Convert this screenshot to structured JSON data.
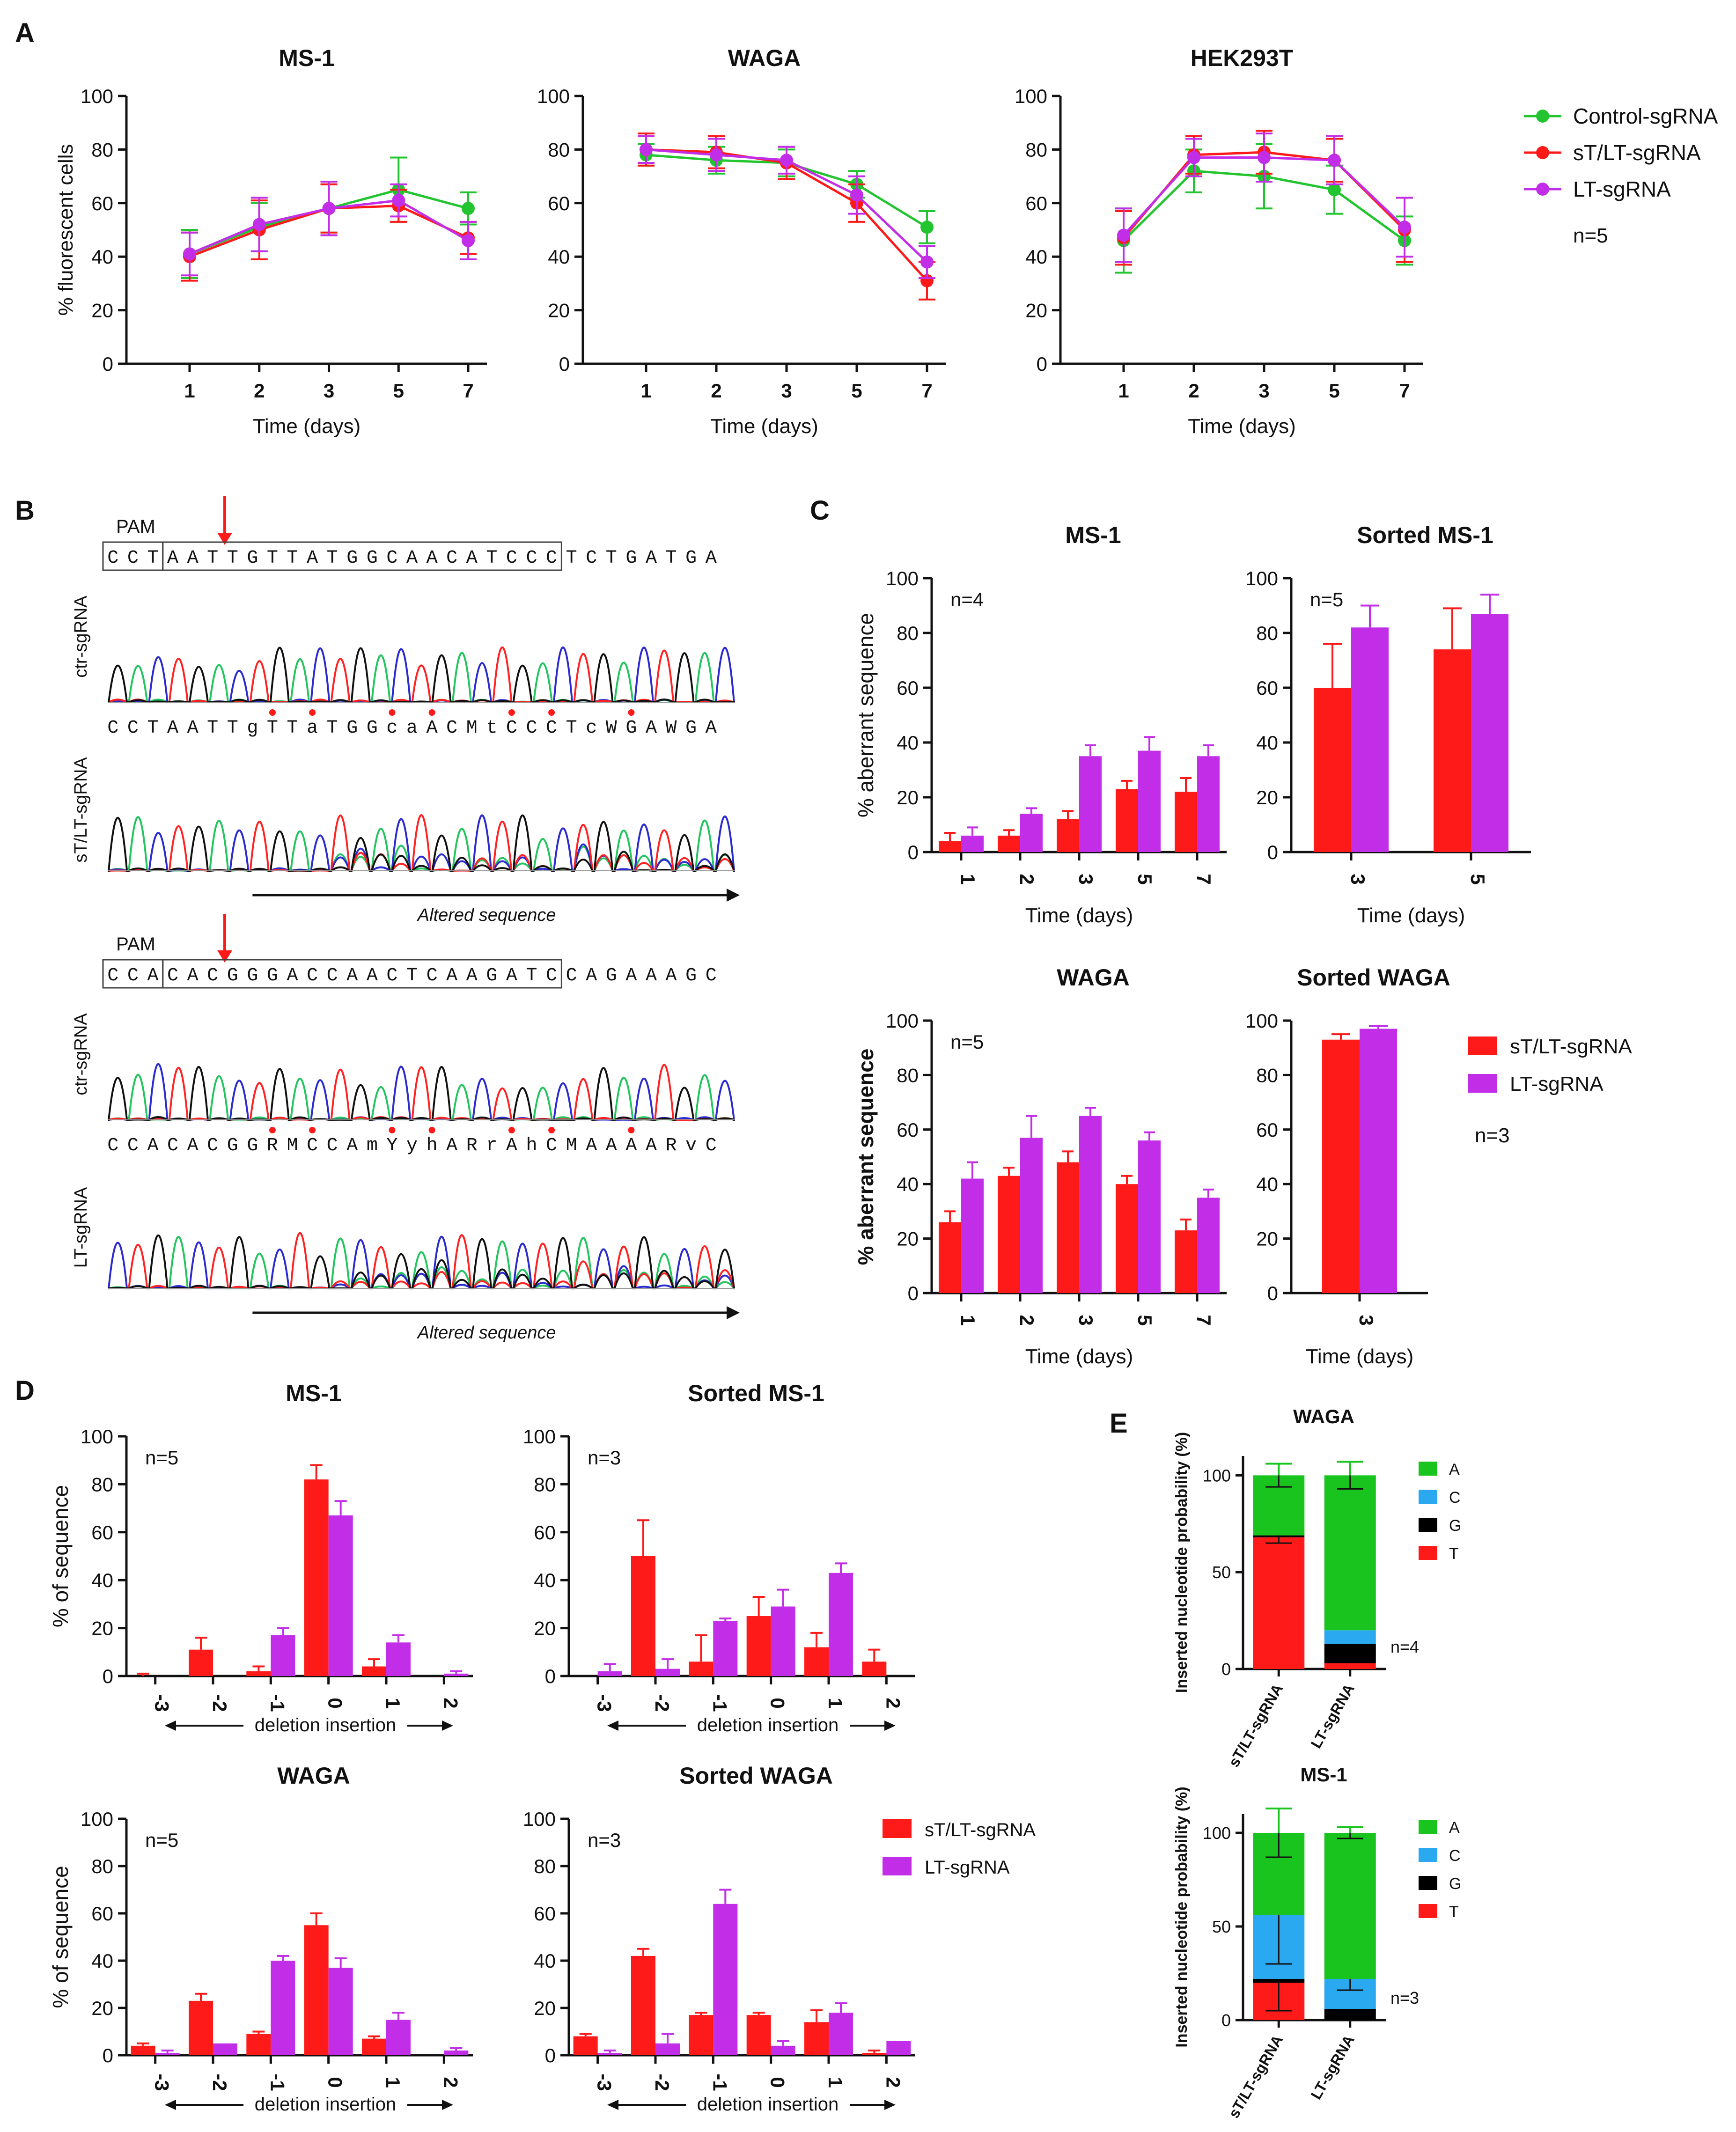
{
  "colors": {
    "control": "#22c52f",
    "red": "#ff1a1a",
    "magenta": "#c22ee8",
    "A": "#19c41f",
    "C": "#2aa8f0",
    "G": "#000000",
    "T": "#ff1a1a",
    "trace_green": "#22c55e",
    "trace_blue": "#2a2ad0",
    "trace_red": "#ff2222",
    "trace_black": "#111111",
    "green_letter": "#22b22b",
    "blue_letter": "#2c2cc8"
  },
  "panel_letters": {
    "A": "A",
    "B": "B",
    "C": "C",
    "D": "D",
    "E": "E"
  },
  "panel_a": {
    "legend": [
      "Control-sgRNA",
      "sT/LT-sgRNA",
      "LT-sgRNA"
    ],
    "n_label": "n=5",
    "ylabel": "% fluorescent cells",
    "xlabel": "Time (days)"
  },
  "panel_b": {
    "top": {
      "pam": "PAM",
      "ref": "CCTAATTGTTATGGCAACATCCCTCTGATGA",
      "ctr_label": "ctr-sgRNA",
      "mut_label": "sT/LT-sgRNA",
      "called": "CCTAATTgTTaTGGcaACMtCCCTcWGAWGA",
      "altered": "Altered sequence"
    },
    "bottom": {
      "pam": "PAM",
      "ref": "CCACACGGGACCAACTCAAGATCCAGAAAGC",
      "ctr_label": "ctr-sgRNA",
      "mut_label": "LT-sgRNA",
      "called": "CCACACGGRMCCAmYyhARrAhCMAAAARvC",
      "altered": "Altered sequence"
    }
  },
  "panel_c": {
    "ylabel": "% aberrant sequence",
    "xlabel": "Time (days)",
    "legend": [
      "sT/LT-sgRNA",
      "LT-sgRNA"
    ],
    "n_extra": "n=3"
  },
  "panel_d": {
    "ylabel": "% of sequence",
    "axis_note": "deletion   insertion",
    "legend": [
      "sT/LT-sgRNA",
      "LT-sgRNA"
    ]
  },
  "panel_e": {
    "ylabel": "Inserted nucleotide probability (%)",
    "legend": [
      "A",
      "C",
      "G",
      "T"
    ]
  },
  "chart_data": [
    {
      "id": "A-MS1",
      "type": "line",
      "title": "MS-1",
      "xlabel": "Time (days)",
      "ylabel": "% fluorescent cells",
      "ylim": [
        0,
        100
      ],
      "categories": [
        "1",
        "2",
        "3",
        "5",
        "7"
      ],
      "series": [
        {
          "name": "Control-sgRNA",
          "values": [
            41,
            51,
            58,
            65,
            58
          ],
          "errors": [
            9,
            9,
            9,
            12,
            6
          ]
        },
        {
          "name": "sT/LT-sgRNA",
          "values": [
            40,
            50,
            58,
            59,
            47
          ],
          "errors": [
            9,
            11,
            9,
            6,
            6
          ]
        },
        {
          "name": "LT-sgRNA",
          "values": [
            41,
            52,
            58,
            61,
            46
          ],
          "errors": [
            8,
            10,
            10,
            6,
            7
          ]
        }
      ]
    },
    {
      "id": "A-WAGA",
      "type": "line",
      "title": "WAGA",
      "xlabel": "Time (days)",
      "ylabel": "",
      "ylim": [
        0,
        100
      ],
      "categories": [
        "1",
        "2",
        "3",
        "5",
        "7"
      ],
      "series": [
        {
          "name": "Control-sgRNA",
          "values": [
            78,
            76,
            75,
            67,
            51
          ],
          "errors": [
            4,
            5,
            5,
            5,
            6
          ]
        },
        {
          "name": "sT/LT-sgRNA",
          "values": [
            80,
            79,
            75,
            60,
            31
          ],
          "errors": [
            6,
            6,
            6,
            7,
            7
          ]
        },
        {
          "name": "LT-sgRNA",
          "values": [
            80,
            78,
            76,
            63,
            38
          ],
          "errors": [
            5,
            6,
            5,
            7,
            6
          ]
        }
      ]
    },
    {
      "id": "A-HEK",
      "type": "line",
      "title": "HEK293T",
      "xlabel": "Time (days)",
      "ylabel": "",
      "ylim": [
        0,
        100
      ],
      "categories": [
        "1",
        "2",
        "3",
        "5",
        "7"
      ],
      "series": [
        {
          "name": "Control-sgRNA",
          "values": [
            46,
            72,
            70,
            65,
            46
          ],
          "errors": [
            12,
            8,
            12,
            9,
            9
          ]
        },
        {
          "name": "sT/LT-sgRNA",
          "values": [
            47,
            78,
            79,
            76,
            50
          ],
          "errors": [
            10,
            7,
            8,
            8,
            12
          ]
        },
        {
          "name": "LT-sgRNA",
          "values": [
            48,
            77,
            77,
            76,
            51
          ],
          "errors": [
            10,
            7,
            9,
            9,
            11
          ]
        }
      ]
    },
    {
      "id": "C-MS1",
      "type": "bar",
      "title": "MS-1",
      "n": "n=4",
      "xlabel": "Time (days)",
      "ylabel": "% aberrant sequence",
      "ylim": [
        0,
        100
      ],
      "categories": [
        "1",
        "2",
        "3",
        "5",
        "7"
      ],
      "series": [
        {
          "name": "sT/LT-sgRNA",
          "values": [
            4,
            6,
            12,
            23,
            22
          ],
          "errors": [
            3,
            2,
            3,
            3,
            5
          ]
        },
        {
          "name": "LT-sgRNA",
          "values": [
            6,
            14,
            35,
            37,
            35
          ],
          "errors": [
            3,
            2,
            4,
            5,
            4
          ]
        }
      ]
    },
    {
      "id": "C-SortedMS1",
      "type": "bar",
      "title": "Sorted MS-1",
      "n": "n=5",
      "xlabel": "Time (days)",
      "ylabel": "",
      "ylim": [
        0,
        100
      ],
      "categories": [
        "3",
        "5"
      ],
      "series": [
        {
          "name": "sT/LT-sgRNA",
          "values": [
            60,
            74
          ],
          "errors": [
            16,
            15
          ]
        },
        {
          "name": "LT-sgRNA",
          "values": [
            82,
            87
          ],
          "errors": [
            8,
            7
          ]
        }
      ]
    },
    {
      "id": "C-WAGA",
      "type": "bar",
      "title": "WAGA",
      "n": "n=5",
      "xlabel": "Time (days)",
      "ylabel": "% aberrant sequence",
      "ylim": [
        0,
        100
      ],
      "categories": [
        "1",
        "2",
        "3",
        "5",
        "7"
      ],
      "series": [
        {
          "name": "sT/LT-sgRNA",
          "values": [
            26,
            43,
            48,
            40,
            23
          ],
          "errors": [
            4,
            3,
            4,
            3,
            4
          ]
        },
        {
          "name": "LT-sgRNA",
          "values": [
            42,
            57,
            65,
            56,
            35
          ],
          "errors": [
            6,
            8,
            3,
            3,
            3
          ]
        }
      ]
    },
    {
      "id": "C-SortedWAGA",
      "type": "bar",
      "title": "Sorted WAGA",
      "n": "",
      "xlabel": "Time (days)",
      "ylabel": "",
      "ylim": [
        0,
        100
      ],
      "categories": [
        "3"
      ],
      "series": [
        {
          "name": "sT/LT-sgRNA",
          "values": [
            93
          ],
          "errors": [
            2
          ]
        },
        {
          "name": "LT-sgRNA",
          "values": [
            97
          ],
          "errors": [
            1
          ]
        }
      ]
    },
    {
      "id": "D-MS1",
      "type": "bar",
      "title": "MS-1",
      "n": "n=5",
      "xlabel": "",
      "ylabel": "% of sequence",
      "ylim": [
        0,
        100
      ],
      "categories": [
        "-3",
        "-2",
        "-1",
        "0",
        "1",
        "2"
      ],
      "series": [
        {
          "name": "sT/LT-sgRNA",
          "values": [
            0,
            11,
            2,
            82,
            4,
            0
          ],
          "errors": [
            1,
            5,
            2,
            6,
            3,
            0
          ]
        },
        {
          "name": "LT-sgRNA",
          "values": [
            0,
            0,
            17,
            67,
            14,
            1
          ],
          "errors": [
            0,
            0,
            3,
            6,
            3,
            1
          ]
        }
      ]
    },
    {
      "id": "D-SortedMS1",
      "type": "bar",
      "title": "Sorted MS-1",
      "n": "n=3",
      "xlabel": "",
      "ylabel": "",
      "ylim": [
        0,
        100
      ],
      "categories": [
        "-3",
        "-2",
        "-1",
        "0",
        "1",
        "2"
      ],
      "series": [
        {
          "name": "sT/LT-sgRNA",
          "values": [
            0,
            50,
            6,
            25,
            12,
            6
          ],
          "errors": [
            0,
            15,
            11,
            8,
            6,
            5
          ]
        },
        {
          "name": "LT-sgRNA",
          "values": [
            2,
            3,
            23,
            29,
            43,
            0
          ],
          "errors": [
            3,
            4,
            1,
            7,
            4,
            0
          ]
        }
      ]
    },
    {
      "id": "D-WAGA",
      "type": "bar",
      "title": "WAGA",
      "n": "n=5",
      "xlabel": "",
      "ylabel": "% of sequence",
      "ylim": [
        0,
        100
      ],
      "categories": [
        "-3",
        "-2",
        "-1",
        "0",
        "1",
        "2"
      ],
      "series": [
        {
          "name": "sT/LT-sgRNA",
          "values": [
            4,
            23,
            9,
            55,
            7,
            0
          ],
          "errors": [
            1,
            3,
            1,
            5,
            1,
            0
          ]
        },
        {
          "name": "LT-sgRNA",
          "values": [
            1,
            5,
            40,
            37,
            15,
            2
          ],
          "errors": [
            1,
            0,
            2,
            4,
            3,
            1
          ]
        }
      ]
    },
    {
      "id": "D-SortedWAGA",
      "type": "bar",
      "title": "Sorted WAGA",
      "n": "n=3",
      "xlabel": "",
      "ylabel": "",
      "ylim": [
        0,
        100
      ],
      "categories": [
        "-3",
        "-2",
        "-1",
        "0",
        "1",
        "2"
      ],
      "series": [
        {
          "name": "sT/LT-sgRNA",
          "values": [
            8,
            42,
            17,
            17,
            14,
            1
          ],
          "errors": [
            1,
            3,
            1,
            1,
            5,
            1
          ]
        },
        {
          "name": "LT-sgRNA",
          "values": [
            1,
            5,
            64,
            4,
            18,
            6
          ],
          "errors": [
            1,
            4,
            6,
            2,
            4,
            0
          ]
        }
      ]
    },
    {
      "id": "E-WAGA",
      "type": "bar",
      "stacked": true,
      "title": "WAGA",
      "n": "n=4",
      "xlabel": "",
      "ylabel": "Inserted nucleotide probability (%)",
      "ylim": [
        0,
        110
      ],
      "categories": [
        "sT/LT-sgRNA",
        "LT-sgRNA"
      ],
      "series": [
        {
          "name": "T",
          "values": [
            68,
            3
          ],
          "errors": [
            3,
            0
          ]
        },
        {
          "name": "G",
          "values": [
            1,
            10
          ],
          "errors": [
            0,
            0
          ]
        },
        {
          "name": "C",
          "values": [
            0,
            7
          ],
          "errors": [
            0,
            0
          ]
        },
        {
          "name": "A",
          "values": [
            31,
            80
          ],
          "errors": [
            6,
            7
          ]
        }
      ]
    },
    {
      "id": "E-MS1",
      "type": "bar",
      "stacked": true,
      "title": "MS-1",
      "n": "n=3",
      "xlabel": "",
      "ylabel": "Inserted nucleotide probability (%)",
      "ylim": [
        0,
        110
      ],
      "categories": [
        "sT/LT-sgRNA",
        "LT-sgRNA"
      ],
      "series": [
        {
          "name": "T",
          "values": [
            20,
            0
          ],
          "errors": [
            15,
            0
          ]
        },
        {
          "name": "G",
          "values": [
            2,
            6
          ],
          "errors": [
            0,
            0
          ]
        },
        {
          "name": "C",
          "values": [
            34,
            16
          ],
          "errors": [
            26,
            6
          ]
        },
        {
          "name": "A",
          "values": [
            44,
            78
          ],
          "errors": [
            13,
            3
          ]
        }
      ]
    }
  ]
}
